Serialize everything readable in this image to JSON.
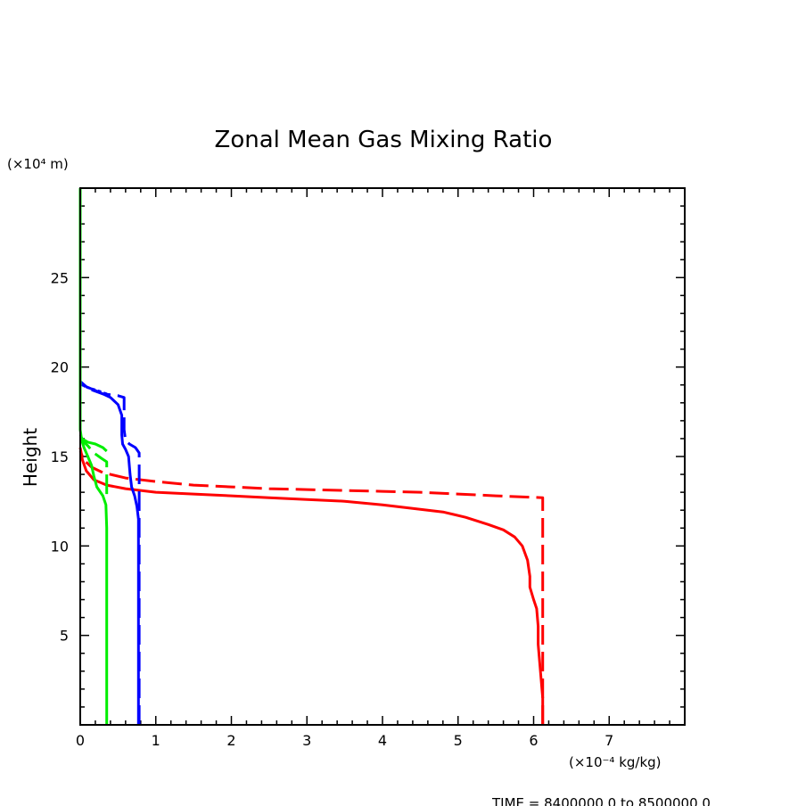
{
  "chart_data": {
    "type": "line",
    "title": "Zonal Mean Gas Mixing Ratio",
    "ylabel": "Height",
    "y_units": "(×10⁴ m)",
    "x_units": "(×10⁻⁴ kg/kg)",
    "xlim": [
      0,
      8
    ],
    "ylim": [
      0,
      30
    ],
    "x_ticks": [
      "0",
      "1",
      "2",
      "3",
      "4",
      "5",
      "6",
      "7"
    ],
    "y_ticks": [
      "5",
      "10",
      "15",
      "20",
      "25"
    ],
    "footer": "TIME = 8400000.0 to 8500000.0",
    "series": [
      {
        "name": "red-solid",
        "color": "#ff0000",
        "dash": "solid",
        "points": [
          [
            6.12,
            0
          ],
          [
            6.12,
            1.5
          ],
          [
            6.1,
            2.5
          ],
          [
            6.08,
            3.5
          ],
          [
            6.06,
            4.5
          ],
          [
            6.06,
            5.5
          ],
          [
            6.04,
            6.5
          ],
          [
            6.0,
            7.0
          ],
          [
            5.95,
            7.7
          ],
          [
            5.95,
            8.3
          ],
          [
            5.92,
            9.2
          ],
          [
            5.85,
            10
          ],
          [
            5.75,
            10.5
          ],
          [
            5.6,
            10.9
          ],
          [
            5.4,
            11.2
          ],
          [
            5.1,
            11.6
          ],
          [
            4.8,
            11.9
          ],
          [
            4.4,
            12.1
          ],
          [
            4.0,
            12.3
          ],
          [
            3.5,
            12.5
          ],
          [
            3.0,
            12.6
          ],
          [
            2.5,
            12.7
          ],
          [
            2.0,
            12.8
          ],
          [
            1.5,
            12.9
          ],
          [
            1.0,
            13.0
          ],
          [
            0.6,
            13.2
          ],
          [
            0.35,
            13.4
          ],
          [
            0.18,
            13.7
          ],
          [
            0.08,
            14.2
          ],
          [
            0.03,
            14.8
          ],
          [
            0,
            15.5
          ]
        ]
      },
      {
        "name": "red-dashed",
        "color": "#ff0000",
        "dash": "long",
        "points": [
          [
            6.12,
            0
          ],
          [
            6.12,
            12.7
          ],
          [
            5.5,
            12.8
          ],
          [
            5.0,
            12.9
          ],
          [
            4.5,
            13.0
          ],
          [
            4.0,
            13.05
          ],
          [
            3.5,
            13.1
          ],
          [
            3.0,
            13.15
          ],
          [
            2.5,
            13.2
          ],
          [
            2.0,
            13.3
          ],
          [
            1.5,
            13.4
          ],
          [
            1.0,
            13.6
          ],
          [
            0.6,
            13.8
          ],
          [
            0.3,
            14.1
          ],
          [
            0.15,
            14.4
          ],
          [
            0.05,
            14.8
          ],
          [
            0,
            15.3
          ]
        ]
      },
      {
        "name": "blue-solid",
        "color": "#0000ff",
        "dash": "solid",
        "points": [
          [
            0.77,
            0
          ],
          [
            0.77,
            11.5
          ],
          [
            0.75,
            12.2
          ],
          [
            0.72,
            12.8
          ],
          [
            0.68,
            13.3
          ],
          [
            0.66,
            14
          ],
          [
            0.64,
            15
          ],
          [
            0.6,
            15.4
          ],
          [
            0.56,
            15.7
          ],
          [
            0.55,
            16.2
          ],
          [
            0.55,
            17.3
          ],
          [
            0.5,
            17.9
          ],
          [
            0.4,
            18.3
          ],
          [
            0.25,
            18.6
          ],
          [
            0.08,
            18.9
          ],
          [
            0,
            19.2
          ]
        ]
      },
      {
        "name": "blue-dashed",
        "color": "#0000ff",
        "dash": "long",
        "points": [
          [
            0.78,
            0
          ],
          [
            0.78,
            15.2
          ],
          [
            0.73,
            15.5
          ],
          [
            0.65,
            15.7
          ],
          [
            0.6,
            15.9
          ],
          [
            0.58,
            16.5
          ],
          [
            0.58,
            18.3
          ],
          [
            0.5,
            18.4
          ],
          [
            0.3,
            18.5
          ],
          [
            0.1,
            18.8
          ],
          [
            0,
            19.1
          ]
        ]
      },
      {
        "name": "blue-dotted",
        "color": "#0000ff",
        "dash": "short",
        "points": [
          [
            0,
            19.05
          ],
          [
            0.1,
            18.85
          ],
          [
            0.25,
            18.65
          ],
          [
            0.38,
            18.45
          ]
        ]
      },
      {
        "name": "green-solid",
        "color": "#00ee00",
        "dash": "solid",
        "points": [
          [
            0.35,
            0
          ],
          [
            0.35,
            11
          ],
          [
            0.34,
            12.3
          ],
          [
            0.3,
            12.8
          ],
          [
            0.22,
            13.3
          ],
          [
            0.18,
            13.9
          ],
          [
            0.15,
            14.5
          ],
          [
            0.1,
            15.0
          ],
          [
            0.05,
            15.5
          ],
          [
            0.02,
            15.9
          ],
          [
            0,
            16.5
          ],
          [
            0,
            30
          ]
        ]
      },
      {
        "name": "green-dashed",
        "color": "#00ee00",
        "dash": "long",
        "points": [
          [
            0.35,
            12.9
          ],
          [
            0.35,
            14.7
          ],
          [
            0.28,
            14.9
          ],
          [
            0.18,
            15.2
          ],
          [
            0.1,
            15.6
          ],
          [
            0.05,
            15.8
          ],
          [
            0,
            16.2
          ]
        ]
      },
      {
        "name": "green-short",
        "color": "#00ee00",
        "dash": "solid",
        "points": [
          [
            0.35,
            15.3
          ],
          [
            0.3,
            15.5
          ],
          [
            0.2,
            15.7
          ],
          [
            0.1,
            15.8
          ],
          [
            0.02,
            16.0
          ]
        ]
      }
    ]
  }
}
